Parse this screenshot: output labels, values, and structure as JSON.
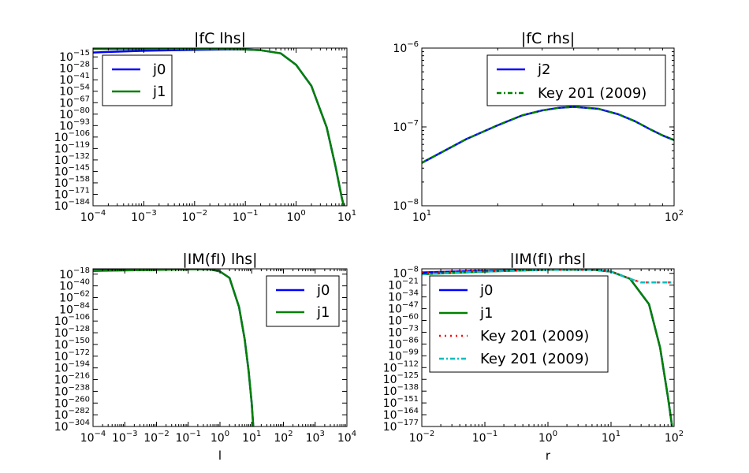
{
  "chart_data": [
    {
      "type": "line",
      "title": "|fC lhs|",
      "xlabel": "",
      "ylabel": "",
      "x_scale": "log",
      "y_scale": "log",
      "xlim": [
        0.0001,
        10
      ],
      "ylim": [
        "1e-184",
        "1e-5"
      ],
      "x_ticks": [
        -4,
        -3,
        -2,
        -1,
        0,
        1
      ],
      "y_ticks": [
        -15,
        -28,
        -41,
        -54,
        -67,
        -80,
        -93,
        -106,
        -119,
        -132,
        -145,
        -158,
        -171,
        -184
      ],
      "legend": "upper-left",
      "series": [
        {
          "name": "j0",
          "color": "#0000ff",
          "style": "solid",
          "points": [
            [
              0.0001,
              "1e-10"
            ],
            [
              0.001,
              "1e-8"
            ],
            [
              0.01,
              "1e-7"
            ],
            [
              0.05,
              "1e-6.5"
            ],
            [
              0.1,
              "1e-6.6"
            ],
            [
              0.2,
              "1e-7.4"
            ],
            [
              0.5,
              "1e-11"
            ],
            [
              1,
              "1e-24"
            ],
            [
              2,
              "1e-48"
            ],
            [
              4,
              "1e-95"
            ],
            [
              6,
              "1e-140"
            ],
            [
              8,
              "1e-176"
            ],
            [
              8.7,
              "1e-184"
            ]
          ]
        },
        {
          "name": "j1",
          "color": "#008000",
          "style": "solid",
          "points": [
            [
              0.0001,
              "1e-6"
            ],
            [
              0.001,
              "1e-6"
            ],
            [
              0.01,
              "1e-6"
            ],
            [
              0.05,
              "1e-6"
            ],
            [
              0.1,
              "1e-6.6"
            ],
            [
              0.2,
              "1e-7.4"
            ],
            [
              0.5,
              "1e-11"
            ],
            [
              1,
              "1e-24"
            ],
            [
              2,
              "1e-48"
            ],
            [
              4,
              "1e-95"
            ],
            [
              6,
              "1e-140"
            ],
            [
              8,
              "1e-176"
            ],
            [
              8.7,
              "1e-184"
            ]
          ]
        }
      ]
    },
    {
      "type": "line",
      "title": "|fC rhs|",
      "xlabel": "",
      "ylabel": "",
      "x_scale": "log",
      "y_scale": "log",
      "xlim": [
        10,
        100
      ],
      "ylim": [
        "1e-8",
        "1e-6"
      ],
      "x_ticks": [
        1,
        2
      ],
      "y_ticks": [
        -8,
        -7,
        -6
      ],
      "legend": "upper-center",
      "series": [
        {
          "name": "j2",
          "color": "#0000ff",
          "style": "solid",
          "points": [
            [
              10,
              "3.5e-8"
            ],
            [
              15,
              "7e-8"
            ],
            [
              20,
              "1.05e-7"
            ],
            [
              25,
              "1.4e-7"
            ],
            [
              30,
              "1.62e-7"
            ],
            [
              35,
              "1.75e-7"
            ],
            [
              40,
              "1.8e-7"
            ],
            [
              50,
              "1.7e-7"
            ],
            [
              60,
              "1.45e-7"
            ],
            [
              70,
              "1.18e-7"
            ],
            [
              80,
              "9.4e-8"
            ],
            [
              90,
              "7.8e-8"
            ],
            [
              100,
              "6.8e-8"
            ]
          ]
        },
        {
          "name": "Key 201 (2009)",
          "color": "#008000",
          "style": "dashdot",
          "points": [
            [
              10,
              "3.5e-8"
            ],
            [
              15,
              "7e-8"
            ],
            [
              20,
              "1.05e-7"
            ],
            [
              25,
              "1.4e-7"
            ],
            [
              30,
              "1.62e-7"
            ],
            [
              35,
              "1.75e-7"
            ],
            [
              40,
              "1.8e-7"
            ],
            [
              50,
              "1.7e-7"
            ],
            [
              60,
              "1.45e-7"
            ],
            [
              70,
              "1.18e-7"
            ],
            [
              80,
              "9.4e-8"
            ],
            [
              90,
              "7.8e-8"
            ],
            [
              100,
              "6.8e-8"
            ]
          ]
        }
      ]
    },
    {
      "type": "line",
      "title": "|IM(fI) lhs|",
      "xlabel": "l",
      "ylabel": "",
      "x_scale": "log",
      "y_scale": "log",
      "xlim": [
        0.0001,
        10000
      ],
      "ylim": [
        "1e-304",
        "1e-8"
      ],
      "x_ticks": [
        -4,
        -3,
        -2,
        -1,
        0,
        1,
        2,
        3,
        4
      ],
      "y_ticks": [
        -18,
        -40,
        -62,
        -84,
        -106,
        -128,
        -150,
        -172,
        -194,
        -216,
        -238,
        -260,
        -282,
        -304
      ],
      "legend": "upper-right",
      "series": [
        {
          "name": "j0",
          "color": "#0000ff",
          "style": "solid",
          "points": [
            [
              0.0001,
              "1e-8"
            ],
            [
              0.001,
              "1e-8"
            ],
            [
              0.01,
              "1e-8"
            ],
            [
              0.1,
              "1e-8"
            ],
            [
              0.5,
              "1e-9"
            ],
            [
              1,
              "1e-13"
            ],
            [
              2,
              "1e-25"
            ],
            [
              4,
              "1e-80"
            ],
            [
              6,
              "1e-140"
            ],
            [
              8,
              "1e-200"
            ],
            [
              10,
              "1e-260"
            ],
            [
              11.2,
              "1e-304"
            ]
          ]
        },
        {
          "name": "j1",
          "color": "#008000",
          "style": "solid",
          "points": [
            [
              0.0001,
              "1e-12"
            ],
            [
              0.001,
              "1e-11"
            ],
            [
              0.01,
              "1e-10"
            ],
            [
              0.1,
              "1e-9"
            ],
            [
              0.5,
              "1e-9"
            ],
            [
              1,
              "1e-13"
            ],
            [
              2,
              "1e-25"
            ],
            [
              4,
              "1e-80"
            ],
            [
              6,
              "1e-140"
            ],
            [
              8,
              "1e-200"
            ],
            [
              10,
              "1e-260"
            ],
            [
              11.2,
              "1e-304"
            ]
          ]
        }
      ]
    },
    {
      "type": "line",
      "title": "|IM(fI) rhs|",
      "xlabel": "r",
      "ylabel": "",
      "x_scale": "log",
      "y_scale": "log",
      "xlim": [
        0.01,
        100
      ],
      "ylim": [
        "1e-177",
        "1e-3"
      ],
      "x_ticks": [
        -2,
        -1,
        0,
        1,
        2
      ],
      "y_ticks": [
        -8,
        -21,
        -34,
        -47,
        -60,
        -73,
        -86,
        -99,
        -112,
        -125,
        -138,
        -151,
        -164,
        -177
      ],
      "legend": "upper-left",
      "series": [
        {
          "name": "j0",
          "color": "#0000ff",
          "style": "solid",
          "points": [
            [
              0.01,
              "1e-7"
            ],
            [
              0.1,
              "1e-5"
            ],
            [
              1,
              "1e-4"
            ],
            [
              5,
              "1e-4"
            ],
            [
              10,
              "1e-6"
            ],
            [
              20,
              "1e-14"
            ],
            [
              40,
              "1e-42"
            ],
            [
              60,
              "1e-90"
            ],
            [
              80,
              "1e-145"
            ],
            [
              90,
              "1e-170"
            ],
            [
              93,
              "1e-177"
            ]
          ]
        },
        {
          "name": "j1",
          "color": "#008000",
          "style": "solid",
          "points": [
            [
              0.01,
              "1e-9"
            ],
            [
              0.1,
              "1e-6"
            ],
            [
              1,
              "1e-4"
            ],
            [
              5,
              "1e-4"
            ],
            [
              10,
              "1e-6"
            ],
            [
              20,
              "1e-14"
            ],
            [
              40,
              "1e-42"
            ],
            [
              60,
              "1e-90"
            ],
            [
              80,
              "1e-145"
            ],
            [
              90,
              "1e-170"
            ],
            [
              93,
              "1e-177"
            ]
          ]
        },
        {
          "name": "Key 201 (2009)",
          "color": "#ff0000",
          "style": "dotted",
          "points": [
            [
              0.01,
              "1e-7"
            ],
            [
              0.1,
              "1e-5"
            ],
            [
              1,
              "1e-4"
            ],
            [
              5,
              "1e-4"
            ],
            [
              10,
              "1e-6"
            ],
            [
              20,
              "1e-14"
            ],
            [
              30,
              "1e-18"
            ],
            [
              50,
              "1e-18"
            ],
            [
              100,
              "1e-18"
            ]
          ]
        },
        {
          "name": "Key 201 (2009)",
          "color": "#00bfbf",
          "style": "dashdot",
          "points": [
            [
              0.01,
              "1e-9"
            ],
            [
              0.1,
              "1e-6"
            ],
            [
              1,
              "1e-4"
            ],
            [
              5,
              "1e-4"
            ],
            [
              10,
              "1e-6"
            ],
            [
              20,
              "1e-14"
            ],
            [
              30,
              "1e-18"
            ],
            [
              50,
              "1e-18"
            ],
            [
              100,
              "1e-18"
            ]
          ]
        }
      ]
    }
  ]
}
